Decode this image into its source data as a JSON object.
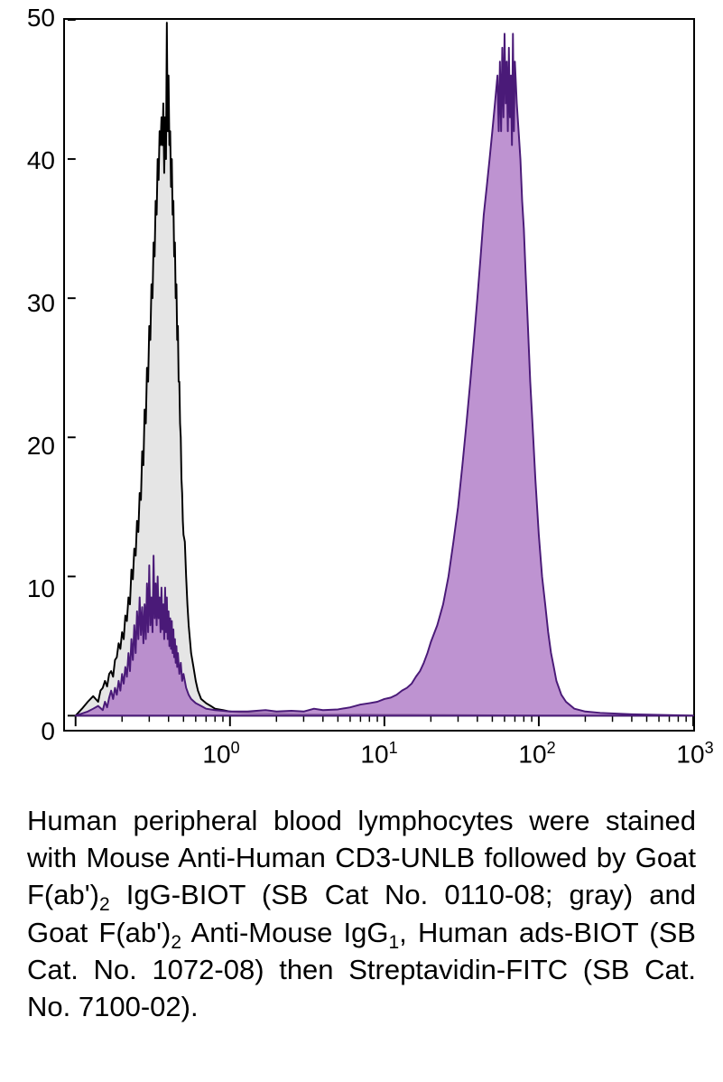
{
  "chart": {
    "type": "histogram",
    "background_color": "#ffffff",
    "axis_color": "#000000",
    "axis_width": 2,
    "xscale": "log",
    "xlim": [
      0.1,
      1000
    ],
    "ylim": [
      0,
      50
    ],
    "ytick_step": 10,
    "yticks": [
      0,
      10,
      20,
      30,
      40,
      50
    ],
    "xticks_major": [
      1,
      10,
      100,
      1000
    ],
    "xtick_labels": [
      "10^0",
      "10^1",
      "10^2",
      "10^3"
    ],
    "tick_fontsize": 28,
    "series": [
      {
        "name": "control-gray",
        "stroke": "#000000",
        "fill": "#e5e5e5",
        "stroke_width": 2,
        "data": [
          [
            0.1,
            0
          ],
          [
            0.11,
            0.5
          ],
          [
            0.12,
            1.0
          ],
          [
            0.13,
            1.4
          ],
          [
            0.14,
            1.0
          ],
          [
            0.145,
            1.8
          ],
          [
            0.15,
            2
          ],
          [
            0.155,
            2.5
          ],
          [
            0.16,
            2.1
          ],
          [
            0.165,
            3.0
          ],
          [
            0.17,
            3.2
          ],
          [
            0.175,
            2.8
          ],
          [
            0.18,
            4.0
          ],
          [
            0.185,
            4.2
          ],
          [
            0.19,
            5.2
          ],
          [
            0.195,
            4.8
          ],
          [
            0.2,
            6.0
          ],
          [
            0.205,
            5.5
          ],
          [
            0.21,
            7.2
          ],
          [
            0.215,
            6.8
          ],
          [
            0.22,
            8.5
          ],
          [
            0.225,
            8.0
          ],
          [
            0.23,
            10.5
          ],
          [
            0.235,
            9.8
          ],
          [
            0.24,
            12.0
          ],
          [
            0.245,
            11.5
          ],
          [
            0.25,
            14.0
          ],
          [
            0.255,
            13.2
          ],
          [
            0.26,
            16.0
          ],
          [
            0.265,
            15.5
          ],
          [
            0.27,
            19.0
          ],
          [
            0.275,
            18
          ],
          [
            0.28,
            22.0
          ],
          [
            0.285,
            21
          ],
          [
            0.29,
            25.0
          ],
          [
            0.295,
            24
          ],
          [
            0.3,
            28
          ],
          [
            0.305,
            27
          ],
          [
            0.31,
            31
          ],
          [
            0.315,
            30
          ],
          [
            0.32,
            34
          ],
          [
            0.325,
            33
          ],
          [
            0.33,
            37
          ],
          [
            0.335,
            36
          ],
          [
            0.34,
            40
          ],
          [
            0.345,
            38.5
          ],
          [
            0.35,
            42
          ],
          [
            0.355,
            41
          ],
          [
            0.36,
            43
          ],
          [
            0.365,
            41
          ],
          [
            0.37,
            44
          ],
          [
            0.375,
            39
          ],
          [
            0.38,
            43
          ],
          [
            0.385,
            40
          ],
          [
            0.39,
            49.8
          ],
          [
            0.395,
            42
          ],
          [
            0.4,
            46
          ],
          [
            0.405,
            41
          ],
          [
            0.41,
            42
          ],
          [
            0.415,
            38
          ],
          [
            0.42,
            40
          ],
          [
            0.425,
            36
          ],
          [
            0.43,
            37
          ],
          [
            0.435,
            33
          ],
          [
            0.44,
            34
          ],
          [
            0.445,
            30
          ],
          [
            0.45,
            31
          ],
          [
            0.455,
            27
          ],
          [
            0.46,
            28
          ],
          [
            0.465,
            24
          ],
          [
            0.47,
            24
          ],
          [
            0.475,
            21
          ],
          [
            0.48,
            20
          ],
          [
            0.485,
            17
          ],
          [
            0.49,
            16
          ],
          [
            0.495,
            14
          ],
          [
            0.5,
            13
          ],
          [
            0.51,
            12.5
          ],
          [
            0.52,
            10
          ],
          [
            0.53,
            8
          ],
          [
            0.54,
            6.5
          ],
          [
            0.55,
            5.5
          ],
          [
            0.56,
            4.5
          ],
          [
            0.58,
            3.5
          ],
          [
            0.6,
            2.5
          ],
          [
            0.62,
            1.8
          ],
          [
            0.65,
            1.2
          ],
          [
            0.7,
            0.9
          ],
          [
            0.75,
            0.7
          ],
          [
            0.8,
            0.5
          ],
          [
            0.9,
            0.4
          ],
          [
            1.0,
            0.3
          ],
          [
            1.2,
            0.2
          ],
          [
            1.5,
            0.18
          ],
          [
            2.0,
            0.15
          ],
          [
            3.0,
            0.1
          ],
          [
            4.0,
            0.1
          ],
          [
            5.0,
            0.1
          ],
          [
            7.0,
            0.1
          ],
          [
            10,
            0.08
          ],
          [
            15,
            0.08
          ],
          [
            30,
            0.05
          ],
          [
            100,
            0
          ],
          [
            1000,
            0
          ]
        ]
      },
      {
        "name": "stained-purple",
        "stroke": "#4a1a78",
        "fill": "#b380c9",
        "fill_opacity": 0.85,
        "stroke_width": 2,
        "data": [
          [
            0.1,
            0
          ],
          [
            0.12,
            0.3
          ],
          [
            0.13,
            0.5
          ],
          [
            0.14,
            0.7
          ],
          [
            0.15,
            0.4
          ],
          [
            0.155,
            1.0
          ],
          [
            0.16,
            0.6
          ],
          [
            0.165,
            1.3
          ],
          [
            0.17,
            1.8
          ],
          [
            0.175,
            1.2
          ],
          [
            0.18,
            2.0
          ],
          [
            0.185,
            1.5
          ],
          [
            0.19,
            2.5
          ],
          [
            0.195,
            1.8
          ],
          [
            0.2,
            3.0
          ],
          [
            0.205,
            2.3
          ],
          [
            0.21,
            3.5
          ],
          [
            0.215,
            2.8
          ],
          [
            0.22,
            4.5
          ],
          [
            0.225,
            3.2
          ],
          [
            0.23,
            5.5
          ],
          [
            0.235,
            4.0
          ],
          [
            0.24,
            6.5
          ],
          [
            0.245,
            4.5
          ],
          [
            0.25,
            7.5
          ],
          [
            0.255,
            5.5
          ],
          [
            0.26,
            8.5
          ],
          [
            0.265,
            5.8
          ],
          [
            0.27,
            7.8
          ],
          [
            0.275,
            5.2
          ],
          [
            0.28,
            8.0
          ],
          [
            0.285,
            5.5
          ],
          [
            0.29,
            9.5
          ],
          [
            0.295,
            6.0
          ],
          [
            0.3,
            10.8
          ],
          [
            0.305,
            6.5
          ],
          [
            0.31,
            8.5
          ],
          [
            0.315,
            6.0
          ],
          [
            0.32,
            11.5
          ],
          [
            0.325,
            7.0
          ],
          [
            0.33,
            9.5
          ],
          [
            0.335,
            6.5
          ],
          [
            0.34,
            10.0
          ],
          [
            0.345,
            7.0
          ],
          [
            0.35,
            8.5
          ],
          [
            0.355,
            6.0
          ],
          [
            0.36,
            9.2
          ],
          [
            0.365,
            6.2
          ],
          [
            0.37,
            8.0
          ],
          [
            0.375,
            5.5
          ],
          [
            0.38,
            9.2
          ],
          [
            0.385,
            6.0
          ],
          [
            0.39,
            8.5
          ],
          [
            0.395,
            5.5
          ],
          [
            0.4,
            7.5
          ],
          [
            0.405,
            5.0
          ],
          [
            0.41,
            7.0
          ],
          [
            0.415,
            4.8
          ],
          [
            0.42,
            6.8
          ],
          [
            0.425,
            4.5
          ],
          [
            0.43,
            6.2
          ],
          [
            0.435,
            4.2
          ],
          [
            0.44,
            5.5
          ],
          [
            0.445,
            3.8
          ],
          [
            0.45,
            5.0
          ],
          [
            0.455,
            3.5
          ],
          [
            0.46,
            4.5
          ],
          [
            0.47,
            3.0
          ],
          [
            0.48,
            3.8
          ],
          [
            0.49,
            2.5
          ],
          [
            0.5,
            3.0
          ],
          [
            0.52,
            2.0
          ],
          [
            0.54,
            1.5
          ],
          [
            0.56,
            1.2
          ],
          [
            0.6,
            0.9
          ],
          [
            0.65,
            0.7
          ],
          [
            0.7,
            0.5
          ],
          [
            0.8,
            0.4
          ],
          [
            0.9,
            0.35
          ],
          [
            1.0,
            0.3
          ],
          [
            1.3,
            0.3
          ],
          [
            1.7,
            0.4
          ],
          [
            2.0,
            0.3
          ],
          [
            2.5,
            0.35
          ],
          [
            3.0,
            0.3
          ],
          [
            3.5,
            0.5
          ],
          [
            4.0,
            0.4
          ],
          [
            5.0,
            0.45
          ],
          [
            6.0,
            0.6
          ],
          [
            7.0,
            0.8
          ],
          [
            8.0,
            0.9
          ],
          [
            9.0,
            1.0
          ],
          [
            10,
            1.2
          ],
          [
            11,
            1.3
          ],
          [
            12,
            1.5
          ],
          [
            13,
            1.8
          ],
          [
            14,
            2.0
          ],
          [
            15,
            2.3
          ],
          [
            16,
            2.8
          ],
          [
            17,
            3.2
          ],
          [
            18,
            3.8
          ],
          [
            19,
            4.5
          ],
          [
            20,
            5.3
          ],
          [
            22,
            6.5
          ],
          [
            24,
            8.0
          ],
          [
            26,
            10.0
          ],
          [
            28,
            12.5
          ],
          [
            30,
            15.0
          ],
          [
            32,
            18.0
          ],
          [
            34,
            21
          ],
          [
            36,
            24
          ],
          [
            38,
            27
          ],
          [
            40,
            30
          ],
          [
            42,
            33
          ],
          [
            44,
            36
          ],
          [
            46,
            38
          ],
          [
            48,
            40
          ],
          [
            50,
            42
          ],
          [
            52,
            44
          ],
          [
            54,
            46
          ],
          [
            55,
            42
          ],
          [
            56,
            47
          ],
          [
            57,
            42
          ],
          [
            58,
            48
          ],
          [
            59,
            43
          ],
          [
            60,
            49
          ],
          [
            61,
            44
          ],
          [
            62,
            47
          ],
          [
            63,
            42
          ],
          [
            64,
            48
          ],
          [
            65,
            43
          ],
          [
            66,
            46
          ],
          [
            67,
            41
          ],
          [
            68,
            49
          ],
          [
            69,
            42
          ],
          [
            70,
            47
          ],
          [
            72,
            44
          ],
          [
            74,
            42
          ],
          [
            76,
            40
          ],
          [
            78,
            37
          ],
          [
            80,
            35
          ],
          [
            82,
            32
          ],
          [
            85,
            28
          ],
          [
            88,
            24
          ],
          [
            92,
            20
          ],
          [
            95,
            17
          ],
          [
            100,
            13
          ],
          [
            105,
            10
          ],
          [
            110,
            8
          ],
          [
            115,
            6
          ],
          [
            120,
            4.5
          ],
          [
            125,
            3.5
          ],
          [
            130,
            2.5
          ],
          [
            140,
            1.5
          ],
          [
            150,
            1.0
          ],
          [
            170,
            0.5
          ],
          [
            200,
            0.3
          ],
          [
            250,
            0.2
          ],
          [
            400,
            0.1
          ],
          [
            1000,
            0
          ]
        ]
      }
    ]
  },
  "caption": {
    "segments": [
      {
        "t": "Human peripheral blood lymphocytes were stained with Mouse Anti-Human CD3-UNLB followed by Goat F(ab')"
      },
      {
        "t": "2",
        "sub": true
      },
      {
        "t": " IgG-BIOT (SB Cat No. 0110-08; gray) and Goat F(ab')"
      },
      {
        "t": "2",
        "sub": true
      },
      {
        "t": " Anti-Mouse IgG"
      },
      {
        "t": "1",
        "sub": true
      },
      {
        "t": ", Human ads-BIOT (SB Cat. No. 1072-08) then Streptavidin-FITC (SB Cat. No. 7100-02)."
      }
    ],
    "fontsize": 31,
    "color": "#000000"
  }
}
